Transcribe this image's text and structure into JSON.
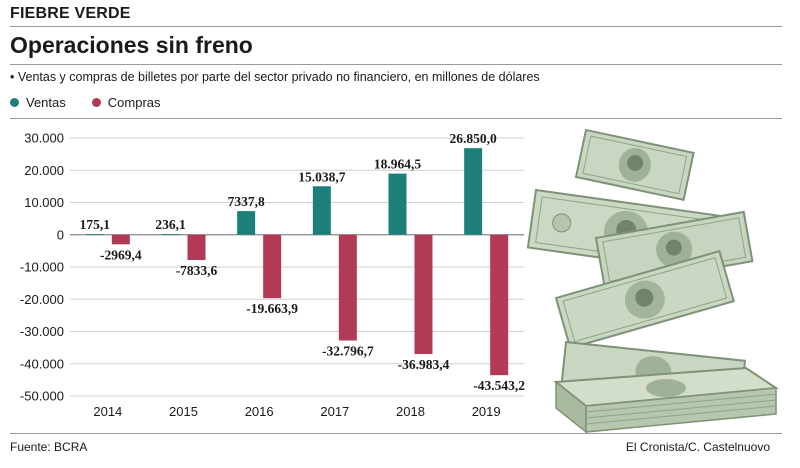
{
  "header": {
    "kicker": "FIEBRE VERDE",
    "title": "Operaciones sin freno",
    "subtitle": "• Ventas y compras de billetes por parte del sector privado no financiero, en millones de dólares"
  },
  "footer": {
    "source": "Fuente: BCRA",
    "credit": "El Cronista/C. Castelnuovo"
  },
  "colors": {
    "ventas": "#1d7f7a",
    "compras": "#b23a55"
  },
  "illustration": "falling-dollar-bills",
  "chart_data": {
    "type": "bar",
    "categories": [
      "2014",
      "2015",
      "2016",
      "2017",
      "2018",
      "2019"
    ],
    "series": [
      {
        "name": "Ventas",
        "values": [
          175.1,
          236.1,
          7337.8,
          15038.7,
          18964.5,
          26850.0
        ],
        "labels": [
          "175,1",
          "236,1",
          "7337,8",
          "15.038,7",
          "18.964,5",
          "26.850,0"
        ]
      },
      {
        "name": "Compras",
        "values": [
          -2969.4,
          -7833.6,
          -19663.9,
          -32796.7,
          -36983.4,
          -43543.2
        ],
        "labels": [
          "-2969,4",
          "-7833,6",
          "-19.663,9",
          "-32.796,7",
          "-36.983,4",
          "-43.543,2"
        ]
      }
    ],
    "ylim": [
      -50000,
      30000
    ],
    "yticks": [
      30000,
      20000,
      10000,
      0,
      -10000,
      -20000,
      -30000,
      -40000,
      -50000
    ],
    "ytick_labels": [
      "30.000",
      "20.000",
      "10.000",
      "0",
      "-10.000",
      "-20.000",
      "-30.000",
      "-40.000",
      "-50.000"
    ],
    "grid": true,
    "legend": "top-left"
  }
}
